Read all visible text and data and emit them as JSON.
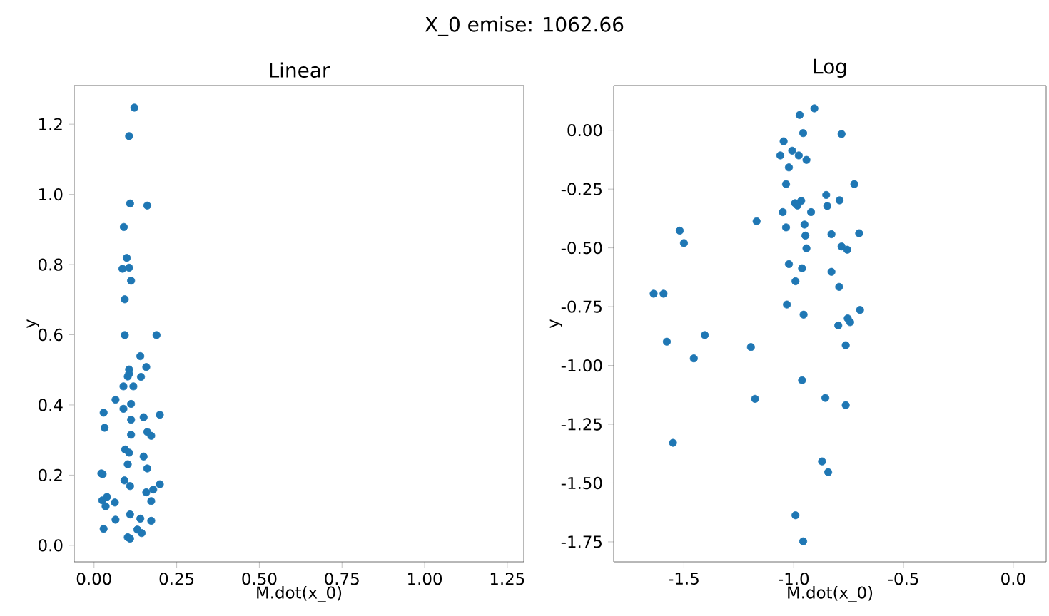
{
  "chart_data": [
    {
      "type": "scatter",
      "title": "Linear",
      "xlabel": "M.dot(x_0)",
      "ylabel": "y",
      "annotations": [
        "X_0 emise: 1062.66"
      ],
      "marker": "circle",
      "grid": false,
      "xlim": [
        -0.06,
        1.3
      ],
      "ylim": [
        -0.047,
        1.31
      ],
      "xticks": [
        {
          "value": 0,
          "label": "0.00"
        },
        {
          "value": 0.25,
          "label": "0.25"
        },
        {
          "value": 0.5,
          "label": "0.50"
        },
        {
          "value": 0.75,
          "label": "0.75"
        },
        {
          "value": 1,
          "label": "1.00"
        },
        {
          "value": 1.25,
          "label": "1.25"
        }
      ],
      "yticks": [
        {
          "value": 0,
          "label": "0.0"
        },
        0.2,
        0.4,
        0.6,
        0.8,
        {
          "value": 1,
          "label": "1.0"
        },
        1.2
      ],
      "series": [
        {
          "color": "#1f77b4",
          "x": [
            0.122,
            0.106,
            0.109,
            0.161,
            0.09,
            0.099,
            0.086,
            0.106,
            0.112,
            0.093,
            0.093,
            0.189,
            0.14,
            0.158,
            0.106,
            0.106,
            0.102,
            0.142,
            0.089,
            0.119,
            0.065,
            0.112,
            0.029,
            0.089,
            0.15,
            0.199,
            0.112,
            0.032,
            0.161,
            0.173,
            0.112,
            0.094,
            0.106,
            0.15,
            0.102,
            0.161,
            0.022,
            0.026,
            0.092,
            0.199,
            0.109,
            0.179,
            0.158,
            0.173,
            0.039,
            0.025,
            0.035,
            0.063,
            0.109,
            0.14,
            0.065,
            0.173,
            0.131,
            0.144,
            0.029,
            0.102,
            0.109
          ],
          "values": [
            1.247,
            1.166,
            0.974,
            0.968,
            0.907,
            0.819,
            0.788,
            0.791,
            0.754,
            0.701,
            0.599,
            0.599,
            0.539,
            0.508,
            0.501,
            0.489,
            0.481,
            0.48,
            0.453,
            0.453,
            0.415,
            0.403,
            0.378,
            0.389,
            0.365,
            0.372,
            0.358,
            0.335,
            0.323,
            0.312,
            0.315,
            0.273,
            0.264,
            0.253,
            0.231,
            0.219,
            0.205,
            0.203,
            0.185,
            0.174,
            0.169,
            0.159,
            0.151,
            0.126,
            0.138,
            0.128,
            0.111,
            0.122,
            0.088,
            0.076,
            0.073,
            0.07,
            0.045,
            0.035,
            0.047,
            0.023,
            0.019
          ]
        }
      ]
    },
    {
      "type": "scatter",
      "title": "Log",
      "xlabel": "M.dot(x_0)",
      "ylabel": "y",
      "marker": "circle",
      "grid": false,
      "xlim": [
        -1.82,
        0.15
      ],
      "ylim": [
        -1.835,
        0.19
      ],
      "xticks": [
        -1.5,
        {
          "value": -1,
          "label": "-1.0"
        },
        -0.5,
        {
          "value": 0,
          "label": "0.0"
        }
      ],
      "yticks": [
        {
          "value": 0,
          "label": "0.00"
        },
        -0.25,
        {
          "value": -0.5,
          "label": "-0.50"
        },
        -0.75,
        {
          "value": -1,
          "label": "-1.00"
        },
        -1.25,
        {
          "value": -1.5,
          "label": "-1.50"
        },
        -1.75
      ],
      "series": [
        {
          "color": "#1f77b4",
          "x": [
            -0.906,
            -0.973,
            -0.957,
            -0.782,
            -1.046,
            -1.007,
            -1.061,
            -0.977,
            -0.942,
            -1.022,
            -1.035,
            -0.724,
            -0.852,
            -0.791,
            -0.966,
            -0.994,
            -0.983,
            -0.847,
            -1.05,
            -0.921,
            -1.169,
            -1.035,
            -0.951,
            -1.519,
            -0.947,
            -0.828,
            -0.702,
            -1.5,
            -0.942,
            -0.782,
            -0.756,
            -1.022,
            -0.962,
            -0.828,
            -0.992,
            -0.793,
            -1.638,
            -1.593,
            -1.031,
            -0.955,
            -0.698,
            -0.754,
            -0.743,
            -0.797,
            -1.405,
            -1.578,
            -1.195,
            -0.763,
            -1.455,
            -0.962,
            -1.176,
            -0.856,
            -0.763,
            -1.55,
            -0.871,
            -0.843,
            -0.992,
            -0.957
          ],
          "values": [
            0.093,
            0.065,
            -0.012,
            -0.016,
            -0.047,
            -0.087,
            -0.107,
            -0.107,
            -0.126,
            -0.158,
            -0.229,
            -0.229,
            -0.275,
            -0.298,
            -0.3,
            -0.31,
            -0.32,
            -0.322,
            -0.348,
            -0.348,
            -0.387,
            -0.413,
            -0.401,
            -0.427,
            -0.448,
            -0.442,
            -0.438,
            -0.48,
            -0.502,
            -0.494,
            -0.508,
            -0.569,
            -0.587,
            -0.602,
            -0.642,
            -0.666,
            -0.695,
            -0.695,
            -0.741,
            -0.784,
            -0.764,
            -0.8,
            -0.816,
            -0.83,
            -0.871,
            -0.899,
            -0.922,
            -0.914,
            -0.97,
            -1.063,
            -1.142,
            -1.138,
            -1.169,
            -1.329,
            -1.408,
            -1.454,
            -1.637,
            -1.748
          ]
        }
      ]
    }
  ]
}
